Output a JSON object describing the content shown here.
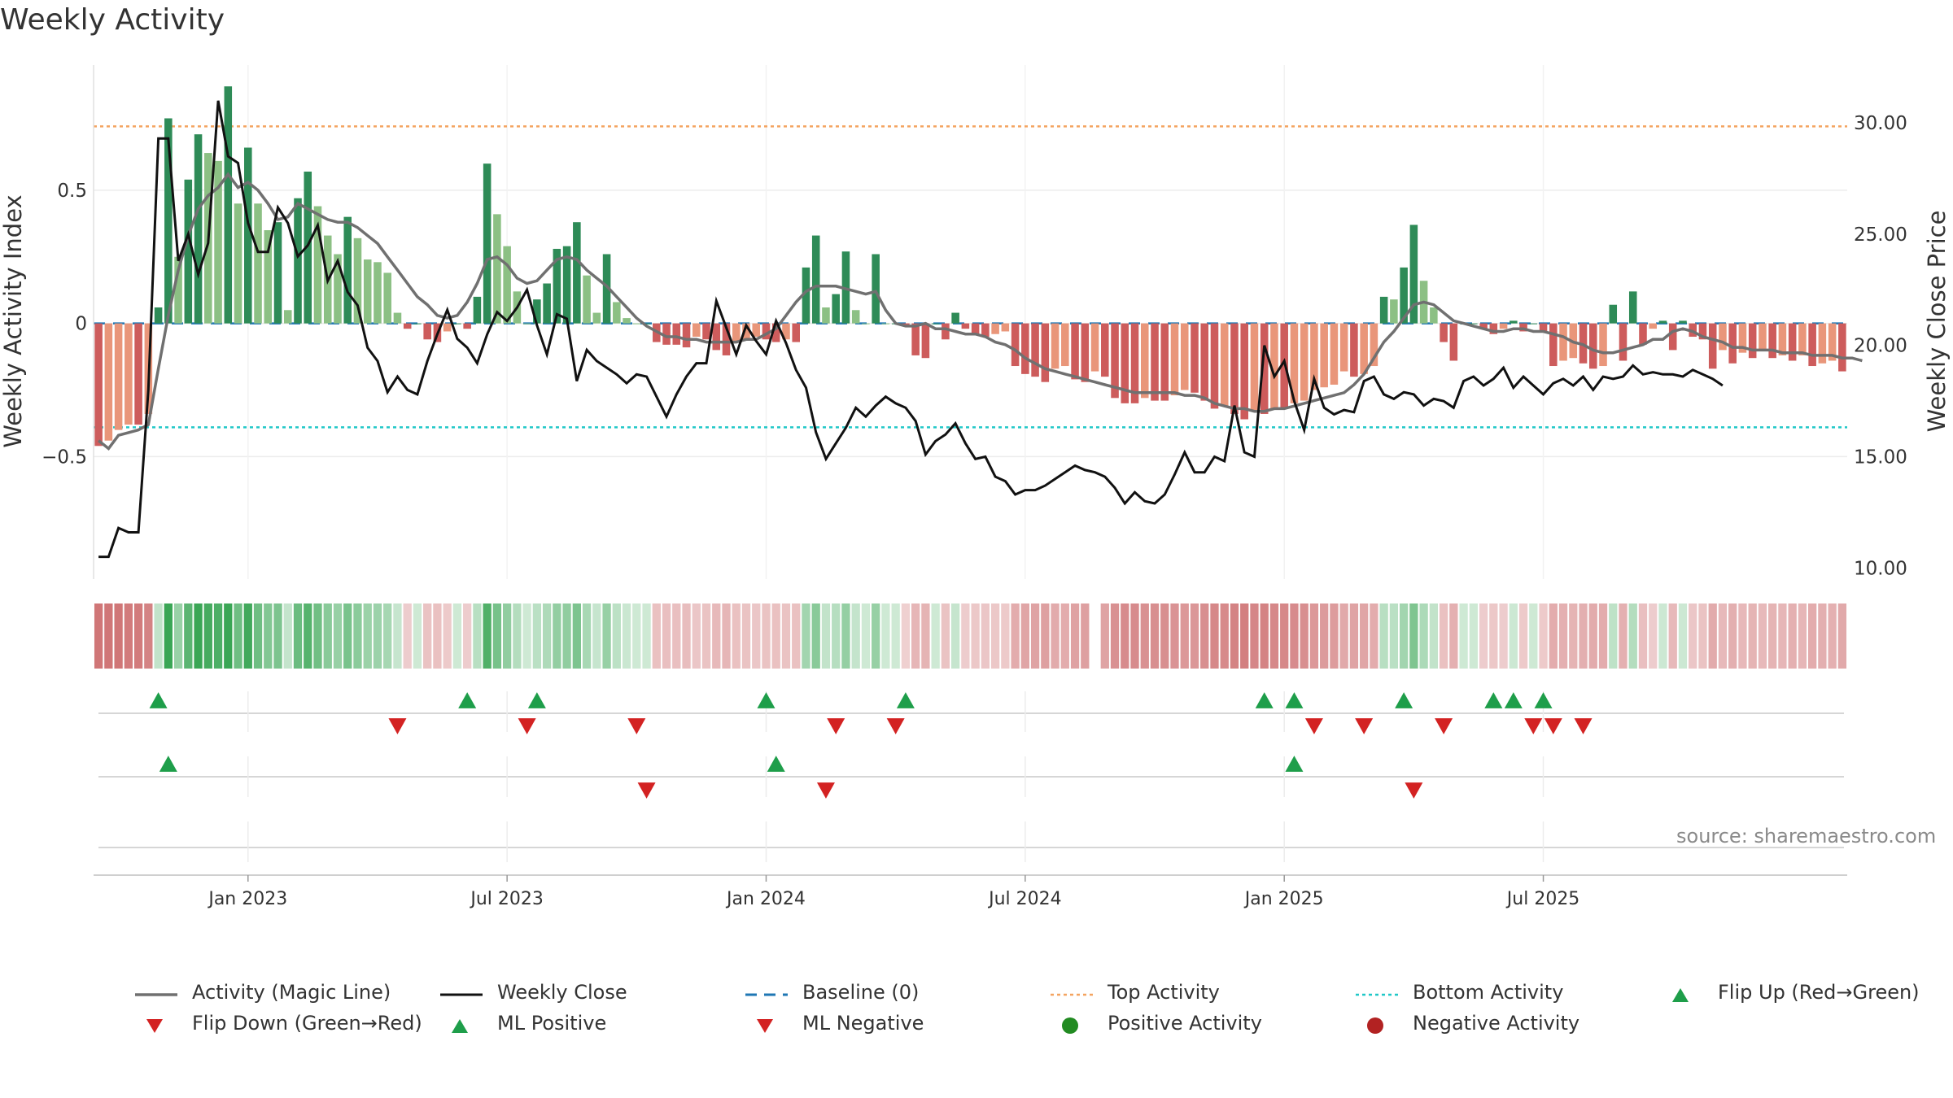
{
  "title": "Weekly Activity",
  "source": "source: sharemaestro.com",
  "chart_data": {
    "type": "bar",
    "x_ticks": [
      "Jan 2023",
      "Jul 2023",
      "Jan 2024",
      "Jul 2024",
      "Jan 2025",
      "Jul 2025"
    ],
    "left_axis": {
      "label": "Weekly Activity Index",
      "ticks": [
        "0.5",
        "0",
        "−0.5"
      ],
      "tick_values": [
        0.5,
        0,
        -0.5
      ],
      "ylim": [
        -0.96,
        0.97
      ]
    },
    "right_axis": {
      "label": "Weekly Close Price",
      "ticks": [
        "30.00",
        "25.00",
        "20.00",
        "15.00",
        "10.00"
      ],
      "tick_values": [
        30,
        25,
        20,
        15,
        10
      ],
      "ylim": [
        9.5,
        32.6
      ]
    },
    "reference_lines": {
      "top_activity": 0.74,
      "bottom_activity": -0.39,
      "baseline": 0
    },
    "activity": [
      -0.46,
      -0.44,
      -0.4,
      -0.38,
      -0.38,
      -0.34,
      0.06,
      0.77,
      0.25,
      0.54,
      0.71,
      0.64,
      0.61,
      0.89,
      0.45,
      0.66,
      0.45,
      0.35,
      0.38,
      0.05,
      0.47,
      0.57,
      0.44,
      0.33,
      0.26,
      0.4,
      0.32,
      0.24,
      0.23,
      0.19,
      0.04,
      -0.02,
      0.0,
      -0.06,
      -0.07,
      -0.03,
      0.0,
      -0.02,
      0.1,
      0.6,
      0.41,
      0.29,
      0.12,
      0.0,
      0.09,
      0.15,
      0.28,
      0.29,
      0.38,
      0.18,
      0.04,
      0.26,
      0.08,
      0.02,
      0.0,
      0.0,
      -0.07,
      -0.08,
      -0.08,
      -0.09,
      -0.05,
      -0.06,
      -0.1,
      -0.12,
      -0.07,
      -0.06,
      -0.05,
      -0.06,
      -0.07,
      -0.06,
      -0.07,
      0.21,
      0.33,
      0.06,
      0.11,
      0.27,
      0.05,
      0.0,
      0.26,
      0.0,
      0.0,
      -0.01,
      -0.12,
      -0.13,
      0.0,
      -0.06,
      0.04,
      -0.02,
      -0.04,
      -0.05,
      -0.04,
      -0.03,
      -0.16,
      -0.19,
      -0.2,
      -0.22,
      -0.17,
      -0.16,
      -0.21,
      -0.22,
      -0.18,
      -0.2,
      -0.28,
      -0.3,
      -0.3,
      -0.28,
      -0.29,
      -0.29,
      -0.27,
      -0.25,
      -0.26,
      -0.29,
      -0.32,
      -0.31,
      -0.34,
      -0.36,
      -0.33,
      -0.34,
      -0.32,
      -0.32,
      -0.3,
      -0.29,
      -0.25,
      -0.24,
      -0.23,
      -0.18,
      -0.2,
      -0.19,
      -0.16,
      0.1,
      0.09,
      0.21,
      0.37,
      0.16,
      0.06,
      -0.07,
      -0.14,
      0.0,
      0.0,
      -0.02,
      -0.04,
      -0.02,
      0.01,
      -0.03,
      0.0,
      -0.03,
      -0.16,
      -0.14,
      -0.13,
      -0.15,
      -0.17,
      -0.16,
      0.07,
      -0.14,
      0.12,
      -0.08,
      -0.02,
      0.01,
      -0.1,
      0.01,
      -0.05,
      -0.06,
      -0.17,
      -0.1,
      -0.15,
      -0.11,
      -0.13,
      -0.1,
      -0.13,
      -0.12,
      -0.14,
      -0.12,
      -0.16,
      -0.15,
      -0.14,
      -0.18
    ],
    "magic_line": [
      -0.44,
      -0.47,
      -0.42,
      -0.41,
      -0.4,
      -0.38,
      -0.17,
      0.03,
      0.2,
      0.33,
      0.43,
      0.48,
      0.51,
      0.56,
      0.51,
      0.53,
      0.5,
      0.45,
      0.39,
      0.4,
      0.45,
      0.43,
      0.41,
      0.39,
      0.38,
      0.38,
      0.36,
      0.33,
      0.3,
      0.25,
      0.2,
      0.15,
      0.1,
      0.07,
      0.03,
      0.02,
      0.03,
      0.08,
      0.15,
      0.24,
      0.25,
      0.22,
      0.17,
      0.15,
      0.16,
      0.2,
      0.24,
      0.25,
      0.24,
      0.2,
      0.17,
      0.14,
      0.1,
      0.06,
      0.02,
      -0.01,
      -0.03,
      -0.05,
      -0.05,
      -0.06,
      -0.06,
      -0.07,
      -0.07,
      -0.07,
      -0.07,
      -0.06,
      -0.06,
      -0.04,
      -0.02,
      0.03,
      0.08,
      0.12,
      0.14,
      0.14,
      0.14,
      0.13,
      0.12,
      0.11,
      0.12,
      0.05,
      0.0,
      -0.01,
      -0.01,
      0.0,
      -0.02,
      -0.02,
      -0.03,
      -0.04,
      -0.04,
      -0.05,
      -0.07,
      -0.08,
      -0.1,
      -0.13,
      -0.15,
      -0.17,
      -0.18,
      -0.19,
      -0.2,
      -0.21,
      -0.22,
      -0.23,
      -0.24,
      -0.25,
      -0.26,
      -0.26,
      -0.26,
      -0.26,
      -0.26,
      -0.27,
      -0.27,
      -0.28,
      -0.3,
      -0.31,
      -0.32,
      -0.32,
      -0.33,
      -0.33,
      -0.32,
      -0.32,
      -0.31,
      -0.3,
      -0.29,
      -0.28,
      -0.27,
      -0.26,
      -0.23,
      -0.19,
      -0.13,
      -0.07,
      -0.03,
      0.02,
      0.07,
      0.08,
      0.07,
      0.04,
      0.01,
      0.0,
      -0.01,
      -0.02,
      -0.03,
      -0.03,
      -0.02,
      -0.02,
      -0.03,
      -0.03,
      -0.04,
      -0.05,
      -0.07,
      -0.08,
      -0.1,
      -0.11,
      -0.11,
      -0.1,
      -0.09,
      -0.08,
      -0.06,
      -0.06,
      -0.03,
      -0.02,
      -0.03,
      -0.05,
      -0.06,
      -0.07,
      -0.09,
      -0.09,
      -0.1,
      -0.1,
      -0.1,
      -0.11,
      -0.11,
      -0.11,
      -0.12,
      -0.12,
      -0.12,
      -0.13,
      -0.13,
      -0.14
    ],
    "weekly_close": [
      10.5,
      10.5,
      11.8,
      11.6,
      11.6,
      18.0,
      29.3,
      29.3,
      23.8,
      25.0,
      23.2,
      24.6,
      31.0,
      28.5,
      28.2,
      25.5,
      24.2,
      24.2,
      26.2,
      25.5,
      24.0,
      24.5,
      25.4,
      22.9,
      23.8,
      22.4,
      21.8,
      19.9,
      19.3,
      17.9,
      18.6,
      18.0,
      17.8,
      19.3,
      20.5,
      21.6,
      20.3,
      19.9,
      19.2,
      20.5,
      21.5,
      21.1,
      21.7,
      22.5,
      20.9,
      19.6,
      21.4,
      21.2,
      18.4,
      19.8,
      19.3,
      19.0,
      18.7,
      18.3,
      18.7,
      18.6,
      17.7,
      16.8,
      17.8,
      18.6,
      19.2,
      19.2,
      22.0,
      20.8,
      19.6,
      20.9,
      20.2,
      19.6,
      21.1,
      20.1,
      18.9,
      18.1,
      16.1,
      14.9,
      15.6,
      16.3,
      17.2,
      16.8,
      17.3,
      17.7,
      17.4,
      17.2,
      16.6,
      15.1,
      15.7,
      16.0,
      16.5,
      15.6,
      14.9,
      15.0,
      14.1,
      13.9,
      13.3,
      13.5,
      13.5,
      13.7,
      14.0,
      14.3,
      14.6,
      14.4,
      14.3,
      14.1,
      13.6,
      12.9,
      13.4,
      13.0,
      12.9,
      13.3,
      14.2,
      15.2,
      14.3,
      14.3,
      15.0,
      14.8,
      17.3,
      15.2,
      15.0,
      20.0,
      18.6,
      19.3,
      17.5,
      16.2,
      18.5,
      17.2,
      16.9,
      17.1,
      17.0,
      18.4,
      18.6,
      17.8,
      17.6,
      17.9,
      17.8,
      17.3,
      17.6,
      17.5,
      17.2,
      18.4,
      18.6,
      18.2,
      18.5,
      19.0,
      18.1,
      18.6,
      18.2,
      17.8,
      18.3,
      18.5,
      18.2,
      18.6,
      18.0,
      18.6,
      18.5,
      18.6,
      19.1,
      18.7,
      18.8,
      18.7,
      18.7,
      18.6,
      18.9,
      18.7,
      18.5,
      18.2
    ],
    "ml_positive_weeks": [
      7,
      68,
      120
    ],
    "ml_negative_weeks": [
      55,
      73,
      132
    ],
    "flip_up_weeks": [
      6,
      37,
      44,
      67,
      81,
      117,
      120,
      131,
      140,
      142,
      145
    ],
    "flip_down_weeks": [
      30,
      43,
      54,
      74,
      80,
      122,
      127,
      135,
      144,
      146,
      149
    ],
    "tick_weeks": [
      15,
      41,
      67,
      93,
      119,
      145
    ]
  },
  "legend": [
    {
      "label": "Activity (Magic Line)",
      "symbol": "line-grey"
    },
    {
      "label": "Weekly Close",
      "symbol": "line-black"
    },
    {
      "label": "Baseline (0)",
      "symbol": "dash-blue"
    },
    {
      "label": "Top Activity",
      "symbol": "dot-orange"
    },
    {
      "label": "Bottom Activity",
      "symbol": "dot-cyan"
    },
    {
      "label": "Flip Up (Red→Green)",
      "symbol": "triangle-up-green"
    },
    {
      "label": "Flip Down (Green→Red)",
      "symbol": "triangle-down-red"
    },
    {
      "label": "ML Positive",
      "symbol": "triangle-up-green"
    },
    {
      "label": "ML Negative",
      "symbol": "triangle-down-red"
    },
    {
      "label": "Positive Activity",
      "symbol": "circle-green"
    },
    {
      "label": "Negative Activity",
      "symbol": "circle-red"
    }
  ],
  "colors": {
    "pos_strong": "#2e8b57",
    "pos_light": "#8cc084",
    "neg_strong": "#cd5c5c",
    "neg_light": "#e9967a",
    "magic": "#707070",
    "close": "#111111",
    "baseline": "#1f77b4",
    "top": "#f4a460",
    "bottom": "#20c8c8",
    "up": "#1e9e4a",
    "down": "#d32222"
  }
}
